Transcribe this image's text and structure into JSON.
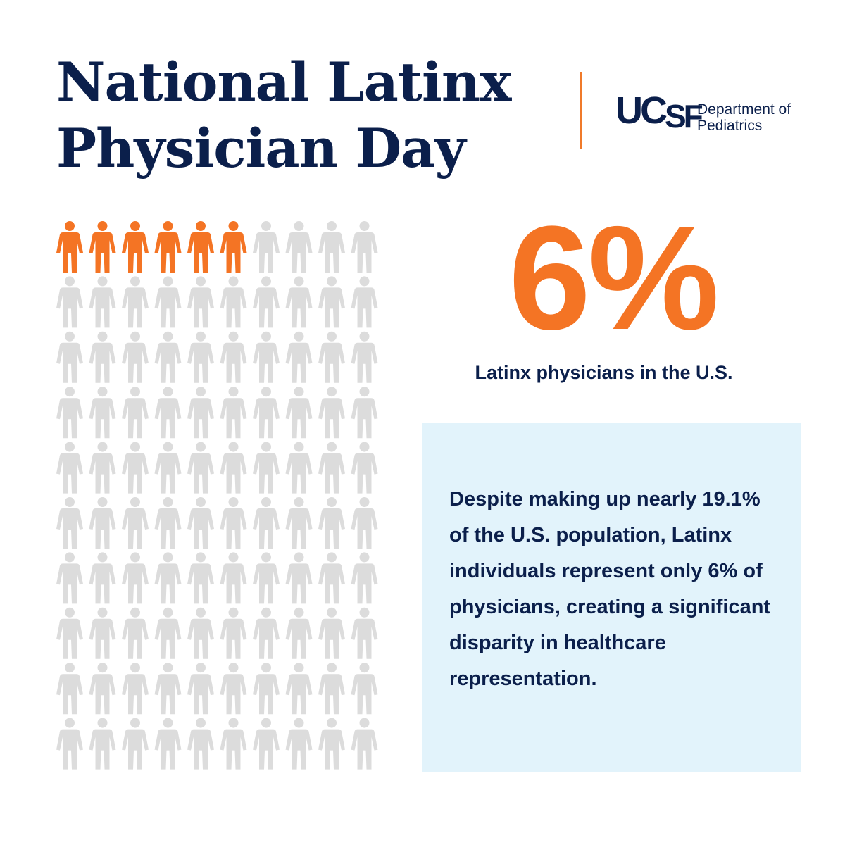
{
  "header": {
    "title_line1": "National Latinx",
    "title_line2": "Physician Day"
  },
  "logo": {
    "mark_uc": "UC",
    "mark_sf": "SF",
    "dept_line1": "Department of",
    "dept_line2": "Pediatrics"
  },
  "pictogram": {
    "total_figures": 100,
    "highlighted_figures": 6,
    "highlight_color": "#f47424",
    "base_color": "#dcdcdc"
  },
  "stat": {
    "value": "6%",
    "caption": "Latinx physicians in the U.S."
  },
  "info": {
    "text": "Despite making up nearly 19.1% of the U.S. population, Latinx individuals represent only 6% of physicians, creating a significant disparity in healthcare representation."
  },
  "colors": {
    "navy": "#0b1f4b",
    "orange": "#f47424",
    "box_bg": "#e2f3fb"
  }
}
